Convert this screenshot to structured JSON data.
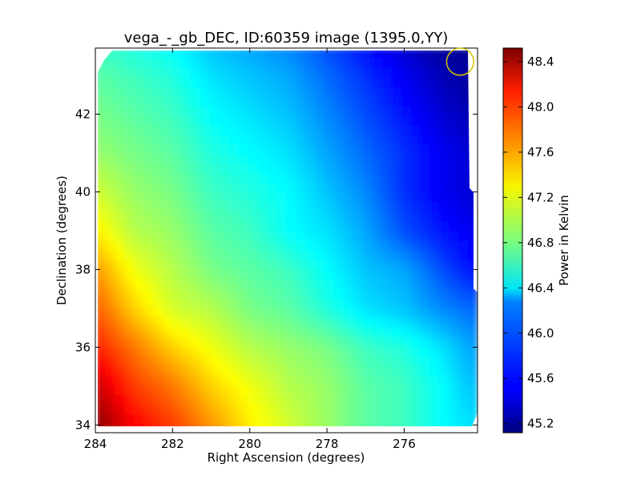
{
  "chart_data": [
    {
      "type": "heatmap",
      "title": "vega_-_gb_DEC, ID:60359 image (1395.0,YY)",
      "xlabel": "Right Ascension (degrees)",
      "ylabel": "Declination (degrees)",
      "xlim": [
        284.0,
        274.1
      ],
      "ylim": [
        33.8,
        43.7
      ],
      "xticks": [
        284,
        282,
        280,
        278,
        276
      ],
      "yticks": [
        34,
        36,
        38,
        40,
        42
      ],
      "xtick_labels": [
        "284",
        "282",
        "280",
        "278",
        "276"
      ],
      "ytick_labels": [
        "34",
        "36",
        "38",
        "40",
        "42"
      ],
      "colormap": "jet",
      "grid": false,
      "marker": {
        "type": "circle",
        "ra": 274.55,
        "dec": 43.35,
        "radius_deg": 0.35,
        "color": "#d4c400"
      },
      "z_grid": {
        "ra": [
          284,
          283,
          282,
          281,
          280,
          279,
          278,
          277,
          276,
          275,
          274.3
        ],
        "dec": [
          34,
          35,
          36,
          37,
          38,
          39,
          40,
          41,
          42,
          43,
          43.7
        ],
        "values": [
          [
            48.5,
            48.1,
            47.9,
            47.6,
            47.3,
            47.1,
            46.9,
            46.7,
            46.6,
            46.4,
            46.3
          ],
          [
            48.3,
            47.9,
            47.7,
            47.4,
            47.2,
            47.0,
            46.9,
            46.7,
            46.6,
            46.4,
            46.2
          ],
          [
            48.0,
            47.7,
            47.4,
            47.2,
            47.0,
            46.9,
            46.8,
            46.6,
            46.5,
            46.3,
            46.1
          ],
          [
            47.8,
            47.4,
            47.1,
            47.0,
            46.8,
            46.7,
            46.5,
            46.3,
            46.2,
            46.0,
            45.9
          ],
          [
            47.6,
            47.2,
            47.0,
            46.8,
            46.7,
            46.6,
            46.4,
            46.2,
            46.1,
            45.8,
            45.6
          ],
          [
            47.3,
            47.0,
            46.9,
            46.7,
            46.6,
            46.4,
            46.3,
            46.1,
            45.8,
            45.6,
            45.5
          ],
          [
            47.1,
            46.9,
            46.8,
            46.6,
            46.5,
            46.4,
            46.2,
            46.0,
            45.7,
            45.5,
            45.4
          ],
          [
            46.9,
            46.8,
            46.7,
            46.5,
            46.4,
            46.3,
            46.1,
            45.9,
            45.7,
            45.5,
            45.4
          ],
          [
            46.8,
            46.7,
            46.6,
            46.4,
            46.3,
            46.2,
            46.0,
            45.8,
            45.6,
            45.4,
            45.3
          ],
          [
            46.7,
            46.6,
            46.5,
            46.3,
            46.2,
            46.1,
            45.9,
            45.7,
            45.5,
            45.3,
            45.2
          ],
          [
            46.6,
            46.5,
            46.4,
            46.2,
            46.1,
            46.0,
            45.8,
            45.6,
            45.4,
            45.2,
            45.2
          ]
        ]
      }
    },
    {
      "type": "colorbar",
      "label": "Power in Kelvin",
      "range": [
        45.12,
        48.52
      ],
      "colormap": "jet",
      "ticks": [
        45.2,
        45.6,
        46.0,
        46.4,
        46.8,
        47.2,
        47.6,
        48.0,
        48.4
      ],
      "tick_labels": [
        "45.2",
        "45.6",
        "46.0",
        "46.4",
        "46.8",
        "47.2",
        "47.6",
        "48.0",
        "48.4"
      ]
    }
  ]
}
